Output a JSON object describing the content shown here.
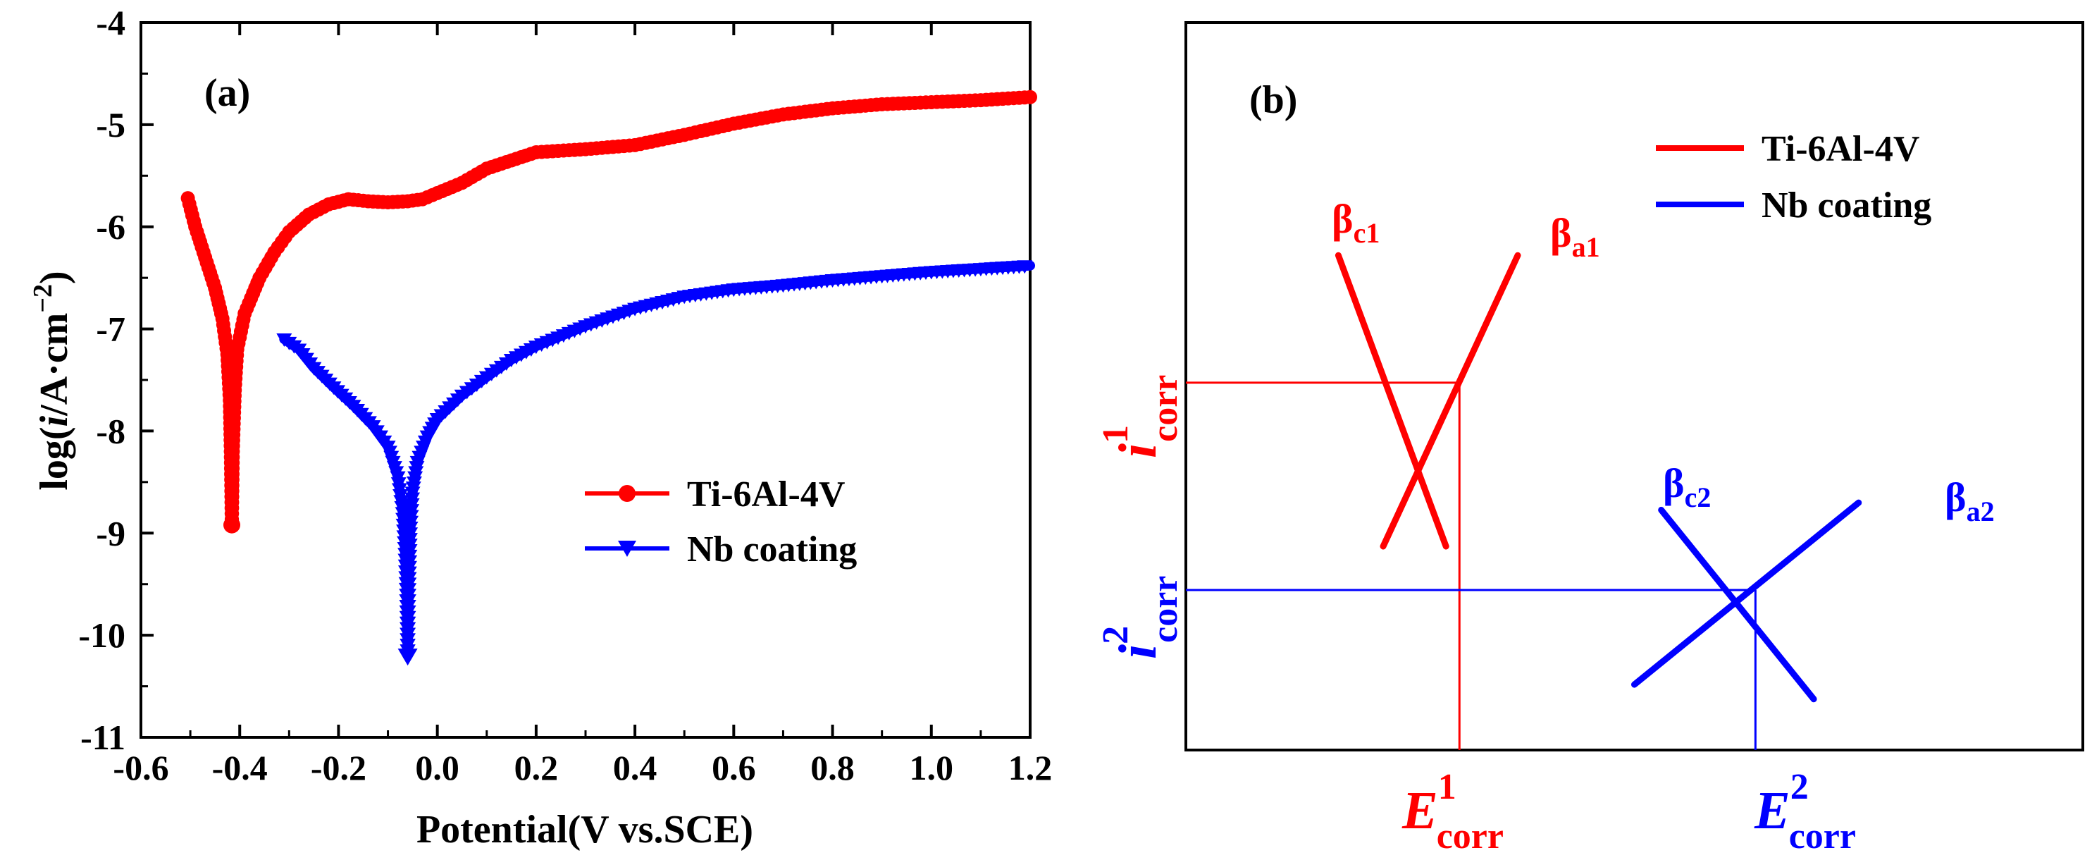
{
  "colors": {
    "ti": "#ff0000",
    "nb": "#0000ff",
    "axis": "#000000"
  },
  "chart_data": [
    {
      "panel": "(a)",
      "type": "line",
      "xlabel": "Potential(V vs.SCE)",
      "ylabel_parts": [
        "log(",
        "i",
        "/A·cm",
        "−2",
        ")"
      ],
      "xlim": [
        -0.6,
        1.2
      ],
      "ylim": [
        -11,
        -4
      ],
      "xticks": [
        -0.6,
        -0.4,
        -0.2,
        0.0,
        0.2,
        0.4,
        0.6,
        0.8,
        1.0,
        1.2
      ],
      "xtick_labels": [
        "-0.6",
        "-0.4",
        "-0.2",
        "0.0",
        "0.2",
        "0.4",
        "0.6",
        "0.8",
        "1.0",
        "1.2"
      ],
      "yticks": [
        -11,
        -10,
        -9,
        -8,
        -7,
        -6,
        -5,
        -4
      ],
      "ytick_labels": [
        "-11",
        "-10",
        "-9",
        "-8",
        "-7",
        "-6",
        "-5",
        "-4"
      ],
      "legend_position": "lower-right",
      "series": [
        {
          "name": "Ti-6Al-4V",
          "color": "#ff0000",
          "marker": "circle",
          "points": [
            [
              -0.505,
              -5.72
            ],
            [
              -0.49,
              -6.0
            ],
            [
              -0.47,
              -6.3
            ],
            [
              -0.45,
              -6.6
            ],
            [
              -0.435,
              -6.9
            ],
            [
              -0.425,
              -7.25
            ],
            [
              -0.42,
              -7.7
            ],
            [
              -0.418,
              -8.2
            ],
            [
              -0.416,
              -8.92
            ],
            [
              -0.414,
              -8.2
            ],
            [
              -0.41,
              -7.6
            ],
            [
              -0.405,
              -7.2
            ],
            [
              -0.39,
              -6.85
            ],
            [
              -0.36,
              -6.5
            ],
            [
              -0.33,
              -6.25
            ],
            [
              -0.3,
              -6.05
            ],
            [
              -0.26,
              -5.88
            ],
            [
              -0.22,
              -5.78
            ],
            [
              -0.18,
              -5.73
            ],
            [
              -0.14,
              -5.75
            ],
            [
              -0.1,
              -5.76
            ],
            [
              -0.06,
              -5.75
            ],
            [
              -0.03,
              -5.73
            ],
            [
              0.0,
              -5.67
            ],
            [
              0.05,
              -5.57
            ],
            [
              0.1,
              -5.43
            ],
            [
              0.15,
              -5.35
            ],
            [
              0.2,
              -5.27
            ],
            [
              0.3,
              -5.24
            ],
            [
              0.4,
              -5.2
            ],
            [
              0.5,
              -5.1
            ],
            [
              0.6,
              -4.99
            ],
            [
              0.7,
              -4.9
            ],
            [
              0.8,
              -4.84
            ],
            [
              0.9,
              -4.8
            ],
            [
              1.0,
              -4.78
            ],
            [
              1.1,
              -4.76
            ],
            [
              1.2,
              -4.73
            ]
          ]
        },
        {
          "name": "Nb coating",
          "color": "#0000ff",
          "marker": "triangle-down",
          "points": [
            [
              -0.31,
              -7.1
            ],
            [
              -0.28,
              -7.2
            ],
            [
              -0.25,
              -7.38
            ],
            [
              -0.21,
              -7.57
            ],
            [
              -0.17,
              -7.75
            ],
            [
              -0.13,
              -7.95
            ],
            [
              -0.1,
              -8.15
            ],
            [
              -0.08,
              -8.45
            ],
            [
              -0.07,
              -8.8
            ],
            [
              -0.065,
              -9.2
            ],
            [
              -0.062,
              -9.6
            ],
            [
              -0.06,
              -10.2
            ],
            [
              -0.058,
              -9.6
            ],
            [
              -0.055,
              -9.0
            ],
            [
              -0.05,
              -8.6
            ],
            [
              -0.04,
              -8.3
            ],
            [
              -0.02,
              -8.05
            ],
            [
              0.0,
              -7.88
            ],
            [
              0.05,
              -7.65
            ],
            [
              0.1,
              -7.47
            ],
            [
              0.15,
              -7.3
            ],
            [
              0.2,
              -7.17
            ],
            [
              0.3,
              -6.97
            ],
            [
              0.4,
              -6.8
            ],
            [
              0.5,
              -6.68
            ],
            [
              0.6,
              -6.61
            ],
            [
              0.7,
              -6.57
            ],
            [
              0.8,
              -6.52
            ],
            [
              0.9,
              -6.48
            ],
            [
              1.0,
              -6.44
            ],
            [
              1.1,
              -6.41
            ],
            [
              1.2,
              -6.38
            ]
          ]
        }
      ]
    },
    {
      "panel": "(b)",
      "type": "line",
      "description_labels": {
        "e1": "E",
        "e1_sup": "1",
        "e1_sub": "corr",
        "e2": "E",
        "e2_sup": "2",
        "e2_sub": "corr",
        "i1": "i",
        "i1_sup": "1",
        "i1_sub": "corr",
        "i2": "i",
        "i2_sup": "2",
        "i2_sub": "corr",
        "bc1": "β",
        "bc1_sub": "c1",
        "ba1": "β",
        "ba1_sub": "a1",
        "bc2": "β",
        "bc2_sub": "c2",
        "ba2": "β",
        "ba2_sub": "a2"
      },
      "xlim": [
        0,
        10
      ],
      "ylim": [
        0,
        10
      ],
      "legend_position": "top-right",
      "series": [
        {
          "name": "Ti-6Al-4V",
          "color": "#ff0000",
          "tafel_lines": [
            [
              [
                2.2,
                2.8
              ],
              [
                3.7,
                6.8
              ]
            ],
            [
              [
                2.9,
                2.8
              ],
              [
                1.7,
                6.8
              ]
            ]
          ],
          "intersection": [
            3.05,
            5.05
          ]
        },
        {
          "name": "Nb coating",
          "color": "#0000ff",
          "tafel_lines": [
            [
              [
                5.0,
                0.9
              ],
              [
                7.5,
                3.4
              ]
            ],
            [
              [
                7.0,
                0.7
              ],
              [
                5.3,
                3.3
              ]
            ]
          ],
          "intersection": [
            6.35,
            2.2
          ]
        }
      ]
    }
  ]
}
